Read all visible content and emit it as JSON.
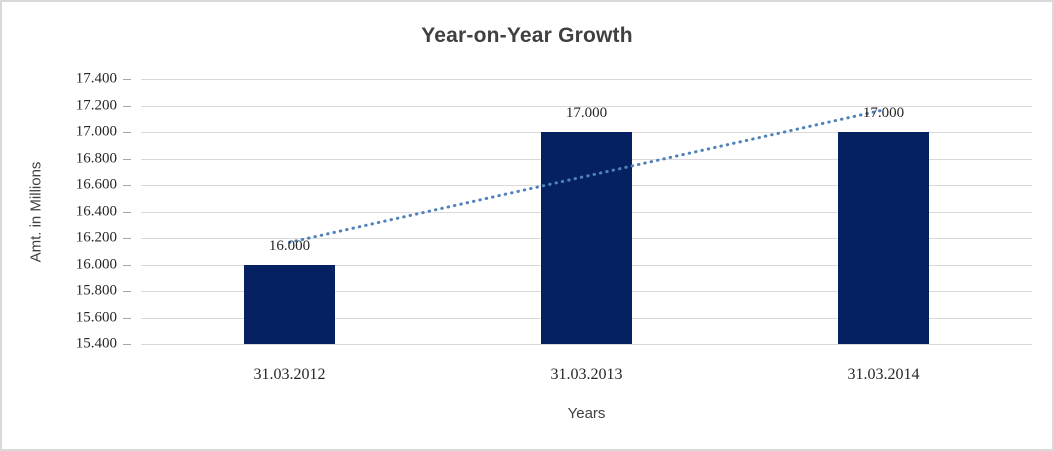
{
  "chart_data": {
    "type": "bar",
    "title": "Year-on-Year Growth",
    "categories": [
      "31.03.2012",
      "31.03.2013",
      "31.03.2014"
    ],
    "values": [
      16.0,
      17.0,
      17.0
    ],
    "data_labels": [
      "16.000",
      "17.000",
      "17.000"
    ],
    "xlabel": "Years",
    "ylabel": "Amt. in Millions",
    "ylim": [
      15.4,
      17.4
    ],
    "ytick_step": 0.2,
    "ytick_decimals": 3,
    "grid": true,
    "legend": "none",
    "trendline": {
      "type": "linear",
      "style": "dotted",
      "start_value": 16.167,
      "end_value": 17.167
    },
    "colors": {
      "bar": "#052161",
      "trendline": "#4f81bd",
      "gridline": "#d9d9d9",
      "tick_mark": "#a6a6a6",
      "title_text": "#404040",
      "label_text": "#262626"
    }
  }
}
